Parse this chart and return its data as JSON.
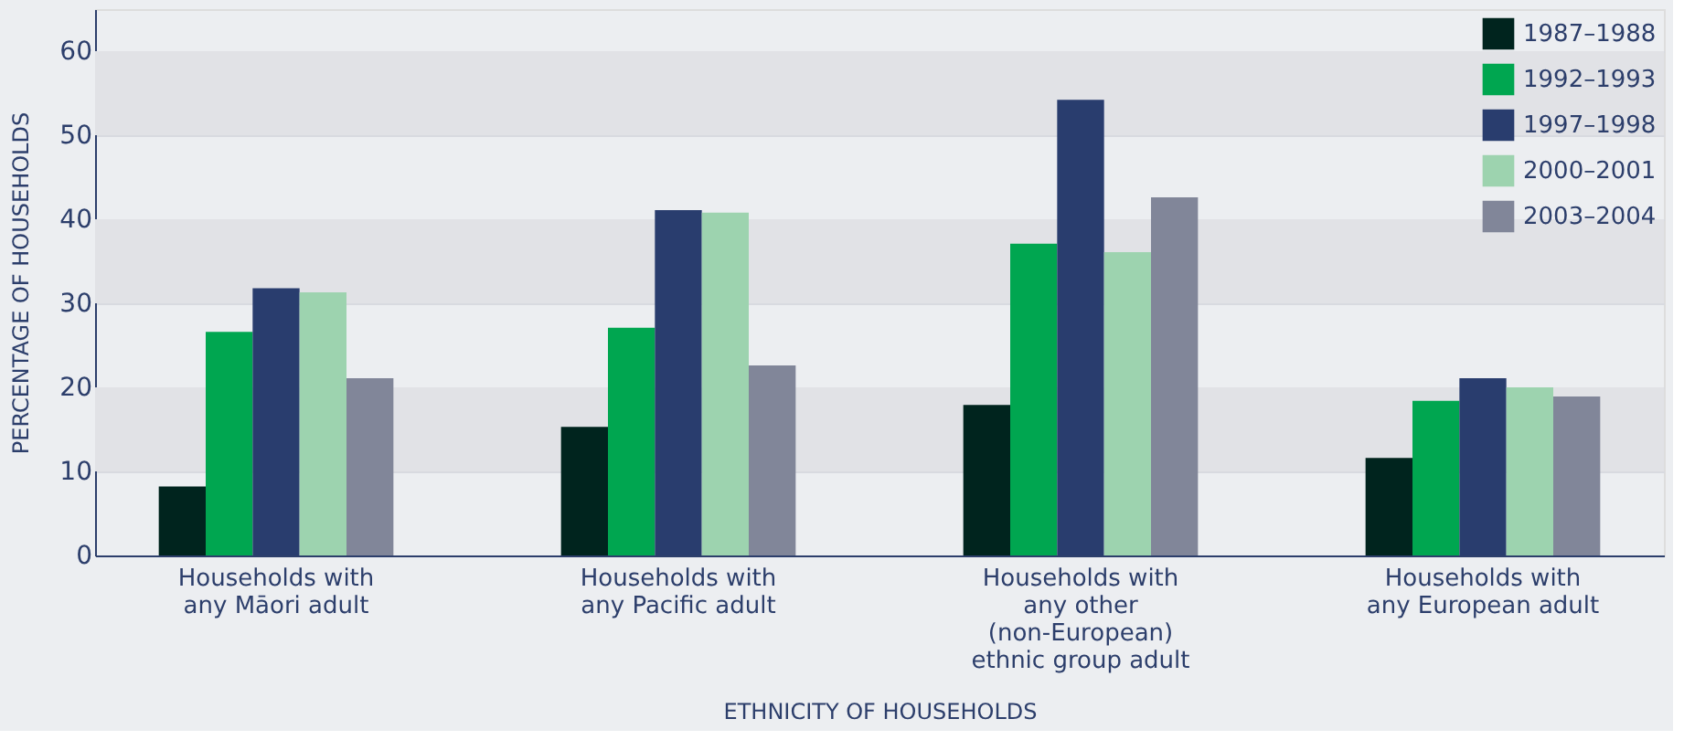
{
  "chart_data": {
    "type": "bar",
    "xlabel": "ETHNICITY OF HOUSEHOLDS",
    "ylabel": "PERCENTAGE OF HOUSEHOLDS",
    "categories": [
      "Households with any Māori adult",
      "Households with any Pacific adult",
      "Households with any other (non-European) ethnic group adult",
      "Households with any European adult"
    ],
    "series": [
      {
        "name": "1987–1988",
        "color": "#00241e",
        "values": [
          8.2,
          15.3,
          17.9,
          11.6
        ]
      },
      {
        "name": "1992–1993",
        "color": "#00a650",
        "values": [
          26.6,
          27.1,
          37.1,
          18.4
        ]
      },
      {
        "name": "1997–1998",
        "color": "#293d6e",
        "values": [
          31.8,
          41.1,
          54.2,
          21.1
        ]
      },
      {
        "name": "2000–2001",
        "color": "#9dd3af",
        "values": [
          31.3,
          40.8,
          36.1,
          20.0
        ]
      },
      {
        "name": "2003–2004",
        "color": "#818699",
        "values": [
          21.1,
          22.6,
          42.6,
          18.9
        ]
      }
    ],
    "ylim": [
      0,
      65
    ],
    "yticks": [
      0,
      10,
      20,
      30,
      40,
      50,
      60
    ],
    "grid": "y",
    "legend": "top right"
  }
}
